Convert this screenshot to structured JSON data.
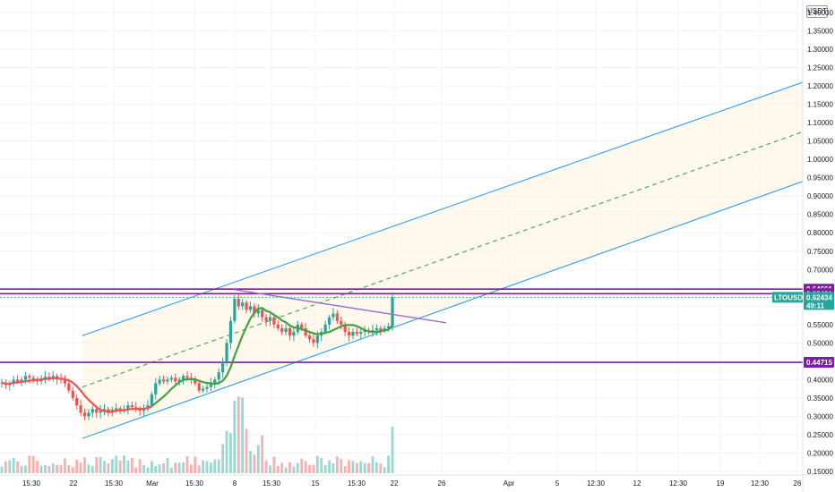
{
  "currency": "USDT",
  "symbol_label": "LTOUSDT",
  "price": "0.62434",
  "countdown": "49:11",
  "colors": {
    "up": "#26a69a",
    "down": "#ef5350",
    "level": "#7b1fa2",
    "channel": "#2196f3",
    "channel_fill": "#fff3e0",
    "midline": "#4caf50",
    "ma_up": "#43a047",
    "ma_down": "#ef5350",
    "trendline": "#9c6fd6",
    "grid": "#f0f3fa"
  },
  "levels": [
    {
      "label": "0.64661",
      "value": 0.64661
    },
    {
      "label": "0.63421",
      "value": 0.63421
    },
    {
      "label": "0.44715",
      "value": 0.44715
    }
  ],
  "chart_data": {
    "type": "candlestick",
    "y_ticks": [
      "0.15000",
      "0.20000",
      "0.25000",
      "0.30000",
      "0.35000",
      "0.40000",
      "0.45000",
      "0.50000",
      "0.55000",
      "0.60000",
      "0.65000",
      "0.70000",
      "0.75000",
      "0.80000",
      "0.85000",
      "0.90000",
      "0.95000",
      "1.00000",
      "1.05000",
      "1.10000",
      "1.15000",
      "1.20000",
      "1.25000",
      "1.30000",
      "1.35000",
      "1.40000"
    ],
    "x_ticks": [
      "15:30",
      "22",
      "15:30",
      "Mar",
      "15:30",
      "8",
      "15:30",
      "15",
      "15:30",
      "22",
      "26",
      "Apr",
      "5",
      "12:30",
      "12",
      "12:30",
      "19",
      "12:30",
      "26"
    ],
    "ylim": [
      0.15,
      1.4
    ],
    "price_path": [
      [
        0.39,
        0.392
      ],
      [
        0.392,
        0.385
      ],
      [
        0.385,
        0.39
      ],
      [
        0.39,
        0.4
      ],
      [
        0.4,
        0.395
      ],
      [
        0.395,
        0.4
      ],
      [
        0.4,
        0.41
      ],
      [
        0.41,
        0.405
      ],
      [
        0.405,
        0.4
      ],
      [
        0.4,
        0.395
      ],
      [
        0.395,
        0.4
      ],
      [
        0.4,
        0.408
      ],
      [
        0.408,
        0.404
      ],
      [
        0.404,
        0.41
      ],
      [
        0.41,
        0.402
      ],
      [
        0.402,
        0.4
      ],
      [
        0.4,
        0.39
      ],
      [
        0.39,
        0.37
      ],
      [
        0.37,
        0.35
      ],
      [
        0.35,
        0.33
      ],
      [
        0.33,
        0.31
      ],
      [
        0.31,
        0.3
      ],
      [
        0.3,
        0.31
      ],
      [
        0.31,
        0.32
      ],
      [
        0.32,
        0.31
      ],
      [
        0.31,
        0.315
      ],
      [
        0.315,
        0.32
      ],
      [
        0.32,
        0.31
      ],
      [
        0.31,
        0.318
      ],
      [
        0.318,
        0.322
      ],
      [
        0.322,
        0.316
      ],
      [
        0.316,
        0.32
      ],
      [
        0.32,
        0.33
      ],
      [
        0.33,
        0.325
      ],
      [
        0.325,
        0.32
      ],
      [
        0.32,
        0.315
      ],
      [
        0.315,
        0.32
      ],
      [
        0.32,
        0.33
      ],
      [
        0.33,
        0.36
      ],
      [
        0.36,
        0.39
      ],
      [
        0.39,
        0.4
      ],
      [
        0.4,
        0.395
      ],
      [
        0.395,
        0.4
      ],
      [
        0.4,
        0.405
      ],
      [
        0.405,
        0.395
      ],
      [
        0.395,
        0.4
      ],
      [
        0.4,
        0.41
      ],
      [
        0.41,
        0.405
      ],
      [
        0.405,
        0.4
      ],
      [
        0.4,
        0.39
      ],
      [
        0.39,
        0.37
      ],
      [
        0.37,
        0.375
      ],
      [
        0.375,
        0.38
      ],
      [
        0.38,
        0.39
      ],
      [
        0.39,
        0.4
      ],
      [
        0.4,
        0.42
      ],
      [
        0.42,
        0.45
      ],
      [
        0.45,
        0.5
      ],
      [
        0.5,
        0.56
      ],
      [
        0.56,
        0.62
      ],
      [
        0.62,
        0.6
      ],
      [
        0.6,
        0.61
      ],
      [
        0.61,
        0.59
      ],
      [
        0.59,
        0.6
      ],
      [
        0.6,
        0.58
      ],
      [
        0.58,
        0.59
      ],
      [
        0.59,
        0.57
      ],
      [
        0.57,
        0.56
      ],
      [
        0.56,
        0.57
      ],
      [
        0.57,
        0.55
      ],
      [
        0.55,
        0.54
      ],
      [
        0.54,
        0.53
      ],
      [
        0.53,
        0.54
      ],
      [
        0.54,
        0.52
      ],
      [
        0.52,
        0.53
      ],
      [
        0.53,
        0.55
      ],
      [
        0.55,
        0.54
      ],
      [
        0.54,
        0.52
      ],
      [
        0.52,
        0.51
      ],
      [
        0.51,
        0.5
      ],
      [
        0.5,
        0.52
      ],
      [
        0.52,
        0.53
      ],
      [
        0.53,
        0.55
      ],
      [
        0.55,
        0.57
      ],
      [
        0.57,
        0.58
      ],
      [
        0.58,
        0.56
      ],
      [
        0.56,
        0.55
      ],
      [
        0.55,
        0.53
      ],
      [
        0.53,
        0.52
      ],
      [
        0.52,
        0.53
      ],
      [
        0.53,
        0.525
      ],
      [
        0.525,
        0.53
      ],
      [
        0.53,
        0.535
      ],
      [
        0.535,
        0.53
      ],
      [
        0.53,
        0.535
      ],
      [
        0.535,
        0.54
      ],
      [
        0.54,
        0.535
      ],
      [
        0.535,
        0.54
      ],
      [
        0.54,
        0.545
      ],
      [
        0.545,
        0.62434
      ]
    ],
    "channel": {
      "start_index": 15,
      "upper_start": 0.52,
      "upper_end": 1.21,
      "lower_start": 0.24,
      "lower_end": 0.94
    },
    "resistance_line": {
      "start_index": 59,
      "start": 0.645,
      "end": 0.555
    },
    "volume_peak_index": 60
  }
}
